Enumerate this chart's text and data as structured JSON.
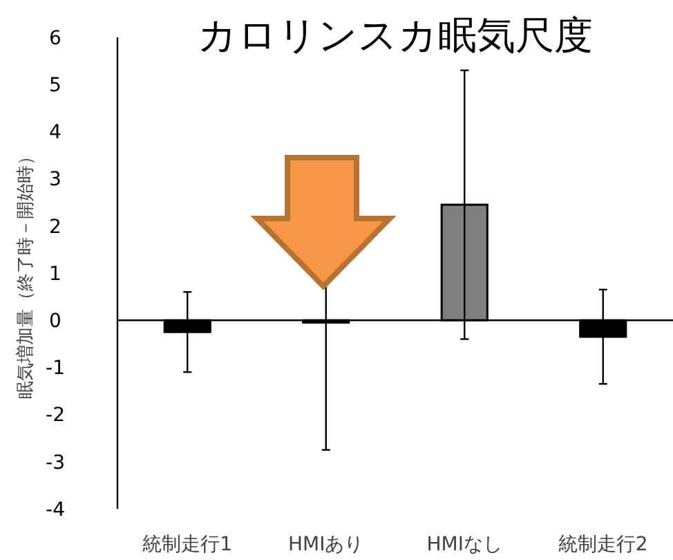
{
  "chart_data": {
    "type": "bar",
    "title": "カロリンスカ眠気尺度",
    "ylabel": "眠気増加量（終了時－開始時）",
    "categories": [
      "統制走行1",
      "HMIあり",
      "HMIなし",
      "統制走行2"
    ],
    "values": [
      -0.25,
      -0.05,
      2.45,
      -0.35
    ],
    "colors": [
      "#000000",
      "#000000",
      "#7f7f7f",
      "#000000"
    ],
    "errors": [
      0.85,
      2.7,
      2.85,
      1.0
    ],
    "ylim": [
      -4,
      6
    ],
    "yticks": [
      -4,
      -3,
      -2,
      -1,
      0,
      1,
      2,
      3,
      4,
      5,
      6
    ]
  }
}
